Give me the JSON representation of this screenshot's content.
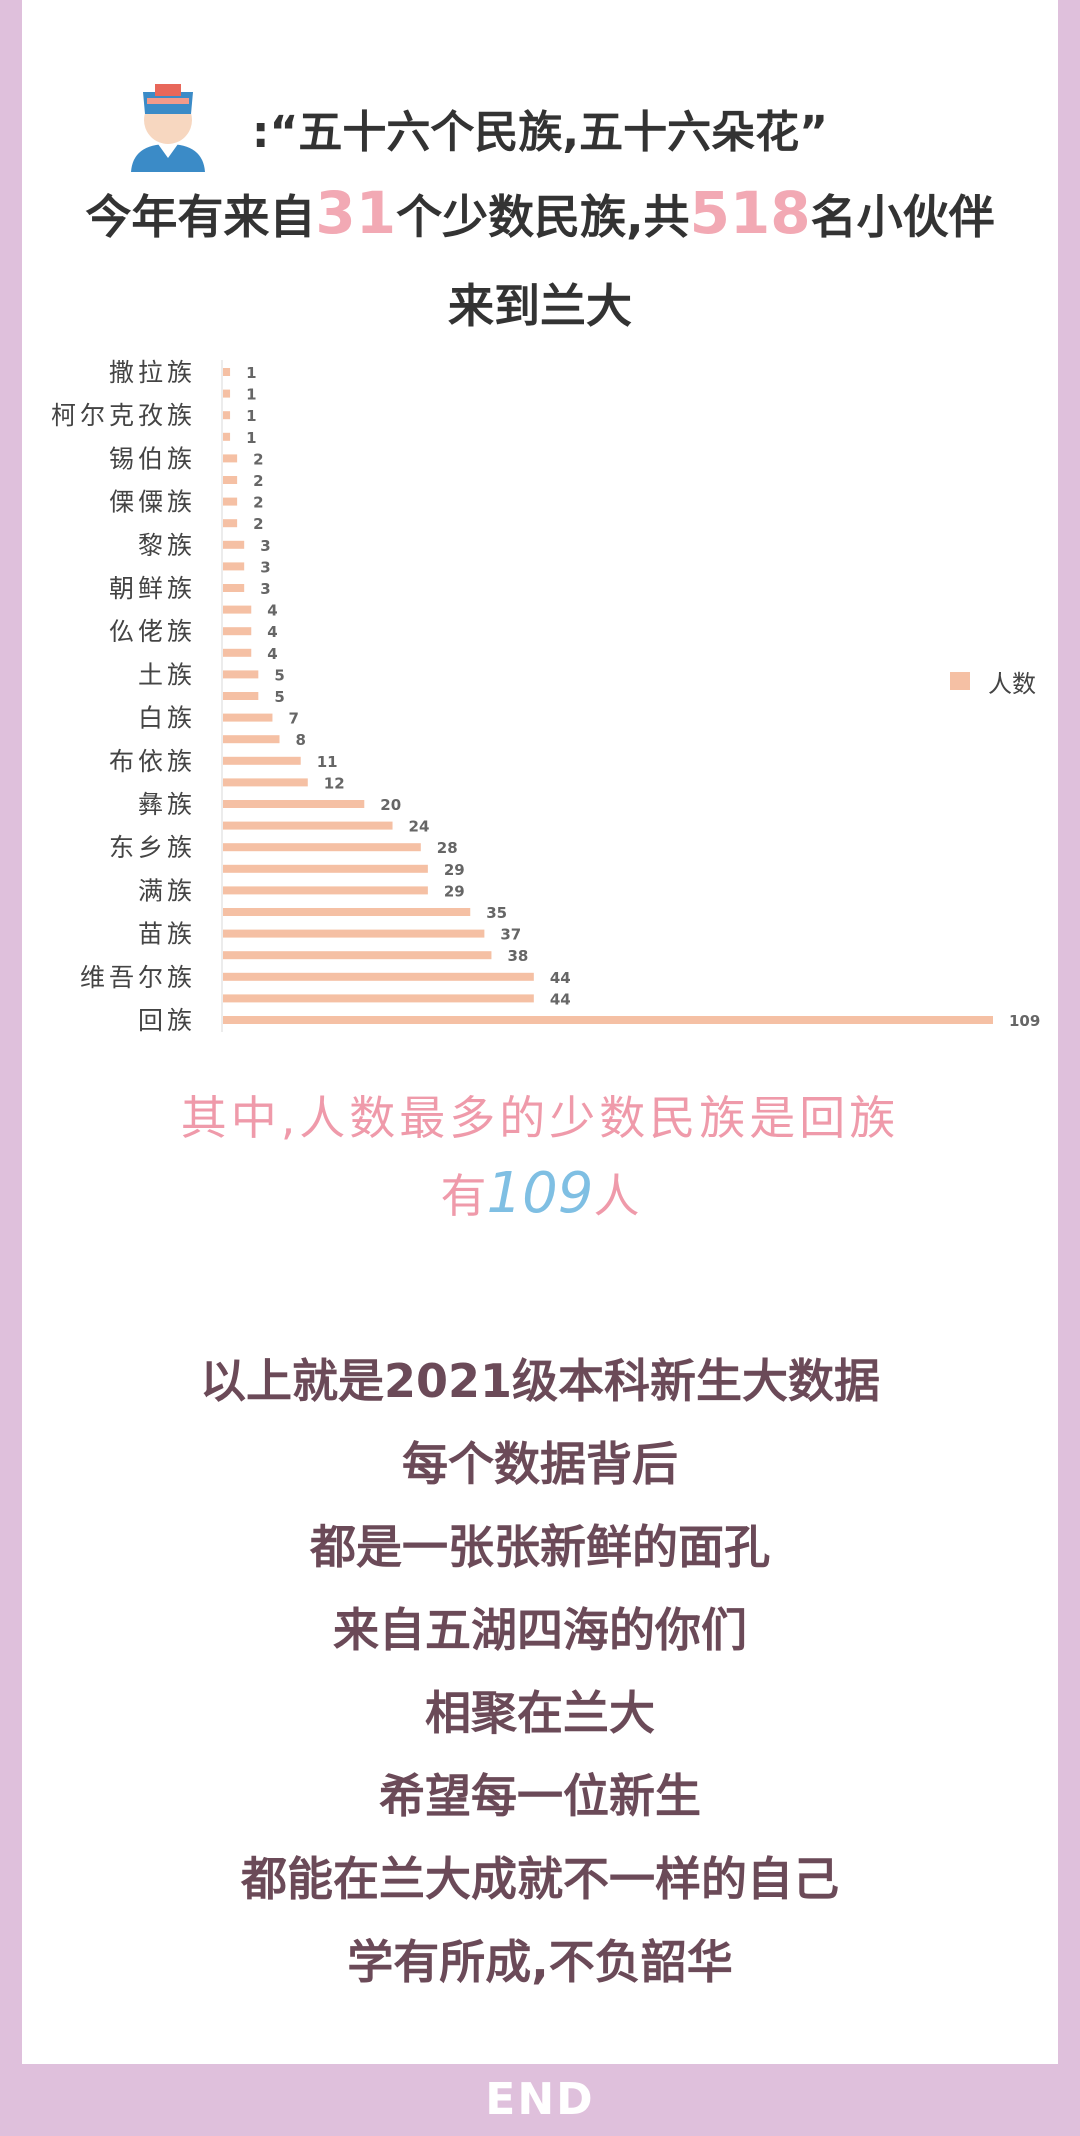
{
  "header": {
    "line1": ":“五十六个民族,五十六朵花”",
    "line2_prefix": "今年有来自",
    "line2_num1": "31",
    "line2_mid": "个少数民族,共",
    "line2_num2": "518",
    "line2_suffix": "名小伙伴",
    "line3": "来到兰大"
  },
  "legend": {
    "label": "人数",
    "color": "#f5c0a4"
  },
  "chart_data": {
    "type": "bar",
    "orientation": "horizontal",
    "legend": "right",
    "series": [
      {
        "name": "人数",
        "values": [
          1,
          1,
          1,
          1,
          2,
          2,
          2,
          2,
          3,
          3,
          3,
          4,
          4,
          4,
          5,
          5,
          7,
          8,
          11,
          12,
          20,
          24,
          28,
          29,
          29,
          35,
          37,
          38,
          44,
          44,
          109
        ]
      }
    ],
    "tick_labels": [
      "撒拉族",
      "柯尔克孜族",
      "锡伯族",
      "傈僳族",
      "黎族",
      "朝鲜族",
      "仫佬族",
      "土族",
      "白族",
      "布依族",
      "彝族",
      "东乡族",
      "满族",
      "苗族",
      "维吾尔族",
      "回族"
    ],
    "xlim": [
      0,
      109
    ],
    "grid": false
  },
  "summary": {
    "line1": "其中,人数最多的少数民族是回族",
    "line2_prefix": "有",
    "line2_num": "109",
    "line2_suffix": "人"
  },
  "closing": [
    "以上就是2021级本科新生大数据",
    "每个数据背后",
    "都是一张张新鲜的面孔",
    "来自五湖四海的你们",
    "相聚在兰大",
    "希望每一位新生",
    "都能在兰大成就不一样的自己",
    "学有所成,不负韶华"
  ],
  "footer": {
    "end": "END"
  },
  "colors": {
    "bar": "#f5c0a4",
    "highlight_pink": "#f2a9b4",
    "highlight_blue": "#7fbfe3",
    "border": "#dfc0dc",
    "closing_text": "#6b4a58"
  }
}
